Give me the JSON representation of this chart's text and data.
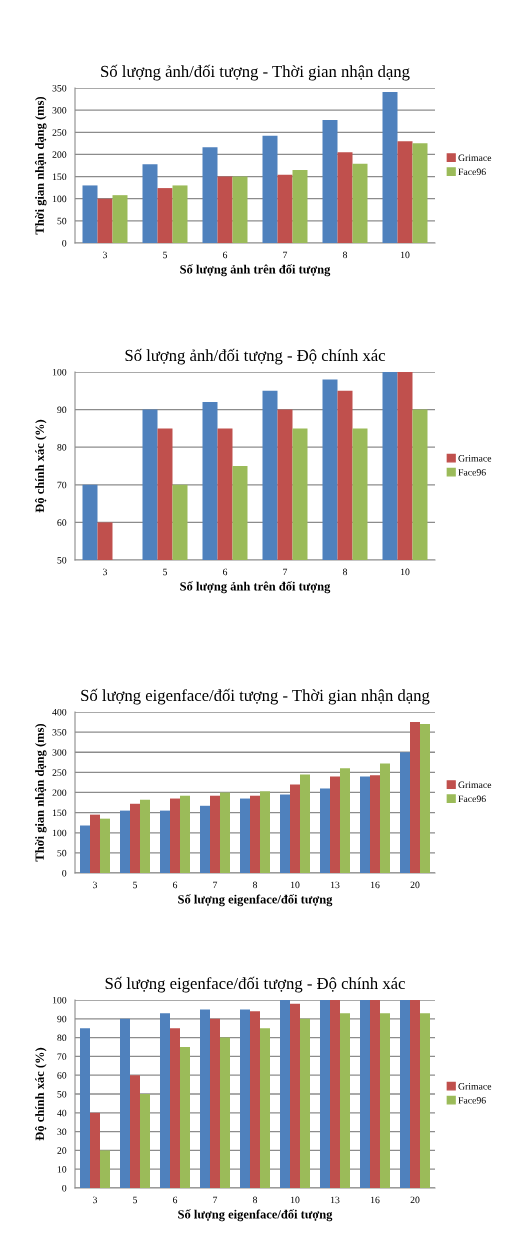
{
  "chart_data": [
    {
      "type": "bar",
      "title": "Số lượng ảnh/đối tượng - Thời gian nhận dạng",
      "xlabel": "Số lượng ảnh trên đối tượng",
      "ylabel": "Thời gian nhận dạng (ms)",
      "categories": [
        "3",
        "5",
        "6",
        "7",
        "8",
        "10"
      ],
      "ylim": [
        0,
        350
      ],
      "yticks": [
        0,
        50,
        100,
        150,
        200,
        250,
        300,
        350
      ],
      "grid": "y",
      "legend": "right",
      "series": [
        {
          "color": "#4f81bd",
          "values": [
            130,
            178,
            216,
            242,
            278,
            341
          ]
        },
        {
          "name": "Grimace",
          "color": "#c0504d",
          "values": [
            100,
            124,
            150,
            154,
            205,
            230
          ]
        },
        {
          "name": "Face96",
          "color": "#9bbb59",
          "values": [
            108,
            130,
            150,
            165,
            179,
            225
          ]
        }
      ]
    },
    {
      "type": "bar",
      "title": "Số lượng ảnh/đối tượng - Độ chính xác",
      "xlabel": "Số lượng ảnh trên đối tượng",
      "ylabel": "Độ chính xác (%)",
      "categories": [
        "3",
        "5",
        "6",
        "7",
        "8",
        "10"
      ],
      "ylim": [
        50,
        100
      ],
      "yticks": [
        50,
        60,
        70,
        80,
        90,
        100
      ],
      "grid": "y",
      "legend": "right",
      "series": [
        {
          "color": "#4f81bd",
          "values": [
            70,
            90,
            92,
            95,
            98,
            100
          ]
        },
        {
          "name": "Grimace",
          "color": "#c0504d",
          "values": [
            60,
            85,
            85,
            90,
            95,
            100
          ]
        },
        {
          "name": "Face96",
          "color": "#9bbb59",
          "values": [
            null,
            70,
            75,
            85,
            85,
            90
          ]
        }
      ]
    },
    {
      "type": "bar",
      "title": "Số lượng eigenface/đối tượng - Thời gian nhận dạng",
      "xlabel": "Số lượng eigenface/đối tượng",
      "ylabel": "Thời gian nhận dạng (ms)",
      "categories": [
        "3",
        "5",
        "6",
        "7",
        "8",
        "10",
        "13",
        "16",
        "20"
      ],
      "ylim": [
        0,
        400
      ],
      "yticks": [
        0,
        50,
        100,
        150,
        200,
        250,
        300,
        350,
        400
      ],
      "grid": "y",
      "legend": "right",
      "series": [
        {
          "color": "#4f81bd",
          "values": [
            118,
            155,
            155,
            167,
            185,
            195,
            210,
            240,
            300
          ]
        },
        {
          "name": "Grimace",
          "color": "#c0504d",
          "values": [
            145,
            172,
            185,
            192,
            192,
            220,
            240,
            243,
            375
          ]
        },
        {
          "name": "Face96",
          "color": "#9bbb59",
          "values": [
            135,
            182,
            192,
            200,
            203,
            245,
            260,
            272,
            370
          ]
        }
      ]
    },
    {
      "type": "bar",
      "title": "Số lượng eigenface/đối tượng - Độ chính xác",
      "xlabel": "Số lượng eigenface/đối tượng",
      "ylabel": "Độ chính xác (%)",
      "categories": [
        "3",
        "5",
        "6",
        "7",
        "8",
        "10",
        "13",
        "16",
        "20"
      ],
      "ylim": [
        0,
        100
      ],
      "yticks": [
        0,
        10,
        20,
        30,
        40,
        50,
        60,
        70,
        80,
        90,
        100
      ],
      "grid": "y",
      "legend": "right",
      "series": [
        {
          "color": "#4f81bd",
          "values": [
            85,
            90,
            93,
            95,
            95,
            100,
            100,
            100,
            100
          ]
        },
        {
          "name": "Grimace",
          "color": "#c0504d",
          "values": [
            40,
            60,
            85,
            90,
            94,
            98,
            100,
            100,
            100
          ]
        },
        {
          "name": "Face96",
          "color": "#9bbb59",
          "values": [
            20,
            50,
            75,
            80,
            85,
            90,
            93,
            93,
            93
          ]
        }
      ]
    }
  ]
}
